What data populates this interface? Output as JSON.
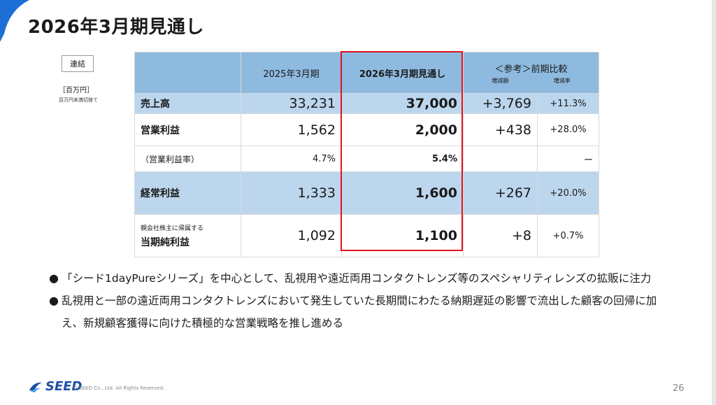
{
  "slide": {
    "title": "2026年3月期見通し",
    "badge": "連結",
    "unit": "［百万円］",
    "unit_note": "百万円未満切捨て",
    "accent_color": "#1d6fd6",
    "highlight_color": "#e0141e"
  },
  "table": {
    "headers": {
      "prev": "2025年3月期",
      "current": "2026年3月期見通し",
      "ref": "＜参考＞前期比較",
      "ref_change": "増減額",
      "ref_rate": "増減率"
    },
    "rows": [
      {
        "label": "売上高",
        "prev": "33,231",
        "current": "37,000",
        "change": "+3,769",
        "rate": "+11.3%"
      },
      {
        "label": "営業利益",
        "prev": "1,562",
        "current": "2,000",
        "change": "+438",
        "rate": "+28.0%"
      },
      {
        "label": "（営業利益率）",
        "prev": "4.7%",
        "current": "5.4%",
        "change": "",
        "rate": "ー"
      },
      {
        "label": "経常利益",
        "prev": "1,333",
        "current": "1,600",
        "change": "+267",
        "rate": "+20.0%"
      },
      {
        "label_sub": "親会社株主に帰属する",
        "label": "当期純利益",
        "prev": "1,092",
        "current": "1,100",
        "change": "+8",
        "rate": "+0.7%"
      }
    ]
  },
  "bullets": [
    {
      "marker": "●",
      "text": "「シード1dayPureシリーズ」を中心として、乱視用や遠近両用コンタクトレンズ等のスペシャリティレンズの拡販に注力"
    },
    {
      "marker": "●",
      "text": "乱視用と一部の遠近両用コンタクトレンズにおいて発生していた長期間にわたる納期遅延の影響で流出した顧客の回帰に加え、新規顧客獲得に向けた積極的な営業戦略を推し進める"
    }
  ],
  "footer": {
    "logo_text": "SEED",
    "copyright": "© SEED Co., Ltd. All Rights Reserved.",
    "page_number": "26"
  }
}
